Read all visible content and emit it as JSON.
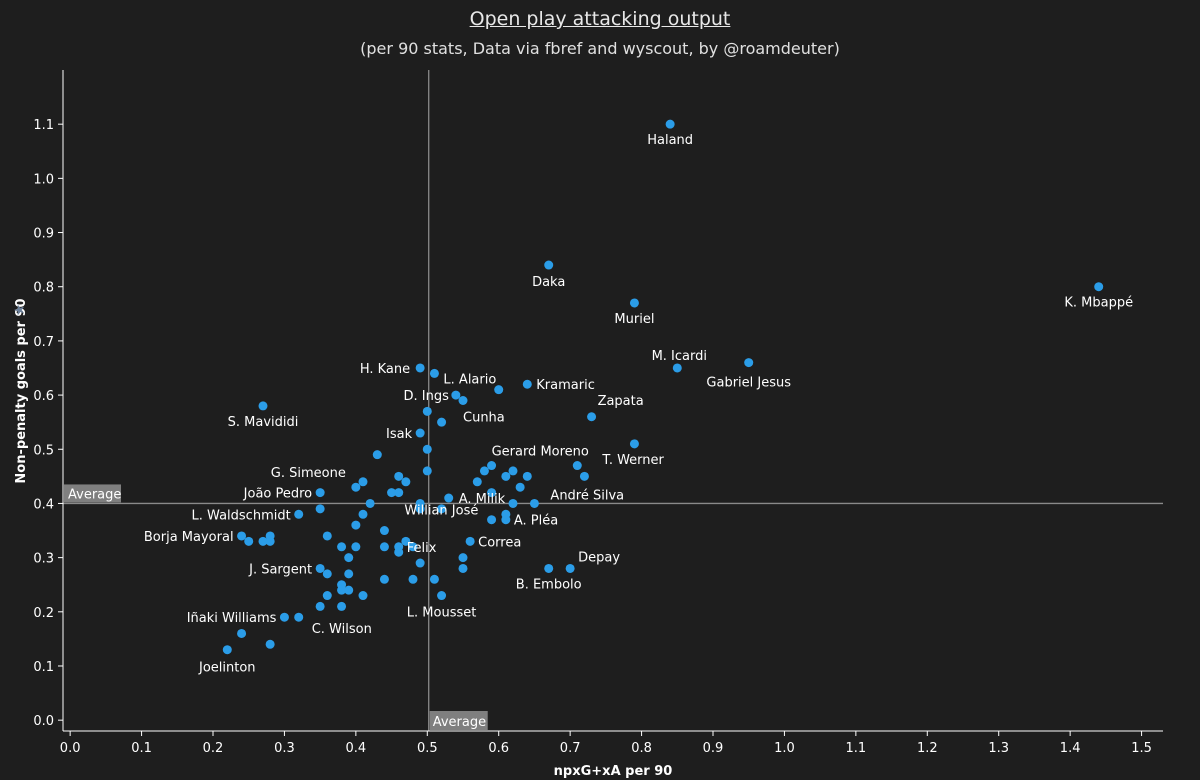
{
  "title": "Open play attacking output",
  "subtitle": "(per 90 stats, Data via fbref and wyscout, by @roamdeuter)",
  "colors": {
    "background": "#1e1e1e",
    "point": "#2b9de8",
    "axis": "#ffffff",
    "reference_line": "#8a8a8a",
    "average_badge": "#7f7f7f"
  },
  "chart_data": {
    "type": "scatter",
    "xlabel": "npxG+xA per 90",
    "ylabel": "Non-penalty goals per 90",
    "xlim": [
      -0.01,
      1.53
    ],
    "ylim": [
      -0.02,
      1.2
    ],
    "x_ticks": [
      "0.0",
      "0.1",
      "0.2",
      "0.3",
      "0.4",
      "0.5",
      "0.6",
      "0.7",
      "0.8",
      "0.9",
      "1.0",
      "1.1",
      "1.2",
      "1.3",
      "1.4",
      "1.5"
    ],
    "y_ticks": [
      "0.0",
      "0.1",
      "0.2",
      "0.3",
      "0.4",
      "0.5",
      "0.6",
      "0.7",
      "0.8",
      "0.9",
      "1.0",
      "1.1"
    ],
    "grid": false,
    "reference_lines": {
      "x_average": 0.502,
      "y_average": 0.4,
      "x_label": "Average",
      "y_label": "Average"
    },
    "points": [
      {
        "x": 0.84,
        "y": 1.1,
        "label": "Haland"
      },
      {
        "x": 1.44,
        "y": 0.8,
        "label": "K. Mbappé"
      },
      {
        "x": 0.67,
        "y": 0.84,
        "label": "Daka"
      },
      {
        "x": 0.79,
        "y": 0.77,
        "label": "Muriel"
      },
      {
        "x": 0.85,
        "y": 0.65,
        "label": "M. Icardi"
      },
      {
        "x": 0.95,
        "y": 0.66,
        "label": "Gabriel Jesus"
      },
      {
        "x": 0.64,
        "y": 0.62,
        "label": "Kramaric"
      },
      {
        "x": 0.73,
        "y": 0.56,
        "label": "Zapata"
      },
      {
        "x": 0.79,
        "y": 0.51,
        "label": "T. Werner"
      },
      {
        "x": 0.49,
        "y": 0.65,
        "label": "H. Kane"
      },
      {
        "x": 0.51,
        "y": 0.64,
        "label": "L. Alario"
      },
      {
        "x": 0.54,
        "y": 0.6,
        "label": "D. Ings"
      },
      {
        "x": 0.55,
        "y": 0.59,
        "label": "Cunha"
      },
      {
        "x": 0.49,
        "y": 0.53,
        "label": "Isak"
      },
      {
        "x": 0.27,
        "y": 0.58,
        "label": "S. Mavididi"
      },
      {
        "x": 0.4,
        "y": 0.43,
        "label": "G. Simeone"
      },
      {
        "x": 0.59,
        "y": 0.47,
        "label": "Gerard Moreno"
      },
      {
        "x": 0.35,
        "y": 0.42,
        "label": "João Pedro"
      },
      {
        "x": 0.65,
        "y": 0.4,
        "label": "André Silva"
      },
      {
        "x": 0.53,
        "y": 0.41,
        "label": "A. Milik"
      },
      {
        "x": 0.32,
        "y": 0.38,
        "label": "L. Waldschmidt"
      },
      {
        "x": 0.61,
        "y": 0.37,
        "label": "A. Pléa"
      },
      {
        "x": 0.44,
        "y": 0.35,
        "label": "Willian José"
      },
      {
        "x": 0.24,
        "y": 0.34,
        "label": "Borja Mayoral"
      },
      {
        "x": 0.46,
        "y": 0.32,
        "label": "Felix"
      },
      {
        "x": 0.56,
        "y": 0.33,
        "label": "Correa"
      },
      {
        "x": 0.7,
        "y": 0.28,
        "label": "Depay"
      },
      {
        "x": 0.67,
        "y": 0.28,
        "label": "B. Embolo"
      },
      {
        "x": 0.35,
        "y": 0.28,
        "label": "J. Sargent"
      },
      {
        "x": 0.52,
        "y": 0.23,
        "label": "L. Mousset"
      },
      {
        "x": 0.3,
        "y": 0.19,
        "label": "Iñaki Williams"
      },
      {
        "x": 0.32,
        "y": 0.19,
        "label": "C. Wilson"
      },
      {
        "x": 0.22,
        "y": 0.13,
        "label": "Joelinton"
      },
      {
        "x": 0.6,
        "y": 0.61
      },
      {
        "x": 0.5,
        "y": 0.57
      },
      {
        "x": 0.52,
        "y": 0.55
      },
      {
        "x": 0.5,
        "y": 0.5
      },
      {
        "x": 0.43,
        "y": 0.49
      },
      {
        "x": 0.46,
        "y": 0.45
      },
      {
        "x": 0.47,
        "y": 0.44
      },
      {
        "x": 0.41,
        "y": 0.44
      },
      {
        "x": 0.45,
        "y": 0.42
      },
      {
        "x": 0.46,
        "y": 0.42
      },
      {
        "x": 0.5,
        "y": 0.46
      },
      {
        "x": 0.42,
        "y": 0.4
      },
      {
        "x": 0.49,
        "y": 0.4
      },
      {
        "x": 0.49,
        "y": 0.39
      },
      {
        "x": 0.52,
        "y": 0.39
      },
      {
        "x": 0.41,
        "y": 0.38
      },
      {
        "x": 0.35,
        "y": 0.39
      },
      {
        "x": 0.4,
        "y": 0.36
      },
      {
        "x": 0.58,
        "y": 0.46
      },
      {
        "x": 0.62,
        "y": 0.46
      },
      {
        "x": 0.61,
        "y": 0.45
      },
      {
        "x": 0.64,
        "y": 0.45
      },
      {
        "x": 0.57,
        "y": 0.44
      },
      {
        "x": 0.63,
        "y": 0.43
      },
      {
        "x": 0.59,
        "y": 0.42
      },
      {
        "x": 0.62,
        "y": 0.4
      },
      {
        "x": 0.59,
        "y": 0.37
      },
      {
        "x": 0.61,
        "y": 0.38
      },
      {
        "x": 0.71,
        "y": 0.47
      },
      {
        "x": 0.72,
        "y": 0.45
      },
      {
        "x": 0.25,
        "y": 0.33
      },
      {
        "x": 0.27,
        "y": 0.33
      },
      {
        "x": 0.28,
        "y": 0.34
      },
      {
        "x": 0.28,
        "y": 0.33
      },
      {
        "x": 0.36,
        "y": 0.34
      },
      {
        "x": 0.38,
        "y": 0.32
      },
      {
        "x": 0.4,
        "y": 0.32
      },
      {
        "x": 0.44,
        "y": 0.32
      },
      {
        "x": 0.39,
        "y": 0.3
      },
      {
        "x": 0.47,
        "y": 0.33
      },
      {
        "x": 0.48,
        "y": 0.32
      },
      {
        "x": 0.46,
        "y": 0.31
      },
      {
        "x": 0.55,
        "y": 0.3
      },
      {
        "x": 0.55,
        "y": 0.28
      },
      {
        "x": 0.49,
        "y": 0.29
      },
      {
        "x": 0.36,
        "y": 0.27
      },
      {
        "x": 0.39,
        "y": 0.27
      },
      {
        "x": 0.38,
        "y": 0.25
      },
      {
        "x": 0.38,
        "y": 0.24
      },
      {
        "x": 0.39,
        "y": 0.24
      },
      {
        "x": 0.44,
        "y": 0.26
      },
      {
        "x": 0.48,
        "y": 0.26
      },
      {
        "x": 0.51,
        "y": 0.26
      },
      {
        "x": 0.36,
        "y": 0.23
      },
      {
        "x": 0.41,
        "y": 0.23
      },
      {
        "x": 0.35,
        "y": 0.21
      },
      {
        "x": 0.38,
        "y": 0.21
      },
      {
        "x": 0.24,
        "y": 0.16
      },
      {
        "x": 0.28,
        "y": 0.14
      }
    ],
    "label_offsets": {
      "Haland": [
        0,
        20,
        "middle"
      ],
      "K. Mbappé": [
        0,
        20,
        "middle"
      ],
      "Daka": [
        0,
        21,
        "middle"
      ],
      "Muriel": [
        0,
        20,
        "middle"
      ],
      "M. Icardi": [
        2,
        -8,
        "middle"
      ],
      "Gabriel Jesus": [
        0,
        24,
        "middle"
      ],
      "Kramaric": [
        9,
        5,
        "start"
      ],
      "Zapata": [
        6,
        -12,
        "start"
      ],
      "T. Werner": [
        -32,
        20,
        "start"
      ],
      "H. Kane": [
        -10,
        5,
        "end"
      ],
      "L. Alario": [
        9,
        10,
        "start"
      ],
      "D. Ings": [
        -7,
        5,
        "end"
      ],
      "Cunha": [
        0,
        21,
        "start"
      ],
      "Isak": [
        -8,
        5,
        "end"
      ],
      "S. Mavididi": [
        0,
        20,
        "middle"
      ],
      "G. Simeone": [
        -10,
        -10,
        "end"
      ],
      "Gerard Moreno": [
        0,
        -10,
        "start"
      ],
      "João Pedro": [
        -8,
        5,
        "end"
      ],
      "André Silva": [
        16,
        -4,
        "start"
      ],
      "A. Milik": [
        10,
        5,
        "start"
      ],
      "L. Waldschmidt": [
        -8,
        5,
        "end"
      ],
      "A. Pléa": [
        8,
        5,
        "start"
      ],
      "Willian José": [
        20,
        -16,
        "start"
      ],
      "Borja Mayoral": [
        -8,
        5,
        "end"
      ],
      "Felix": [
        8,
        5,
        "start"
      ],
      "Correa": [
        8,
        5,
        "start"
      ],
      "Depay": [
        8,
        -7,
        "start"
      ],
      "B. Embolo": [
        0,
        20,
        "middle"
      ],
      "J. Sargent": [
        -8,
        5,
        "end"
      ],
      "L. Mousset": [
        0,
        21,
        "middle"
      ],
      "Iñaki Williams": [
        -8,
        5,
        "end"
      ],
      "C. Wilson": [
        13,
        16,
        "start"
      ],
      "Joelinton": [
        0,
        22,
        "middle"
      ]
    }
  }
}
